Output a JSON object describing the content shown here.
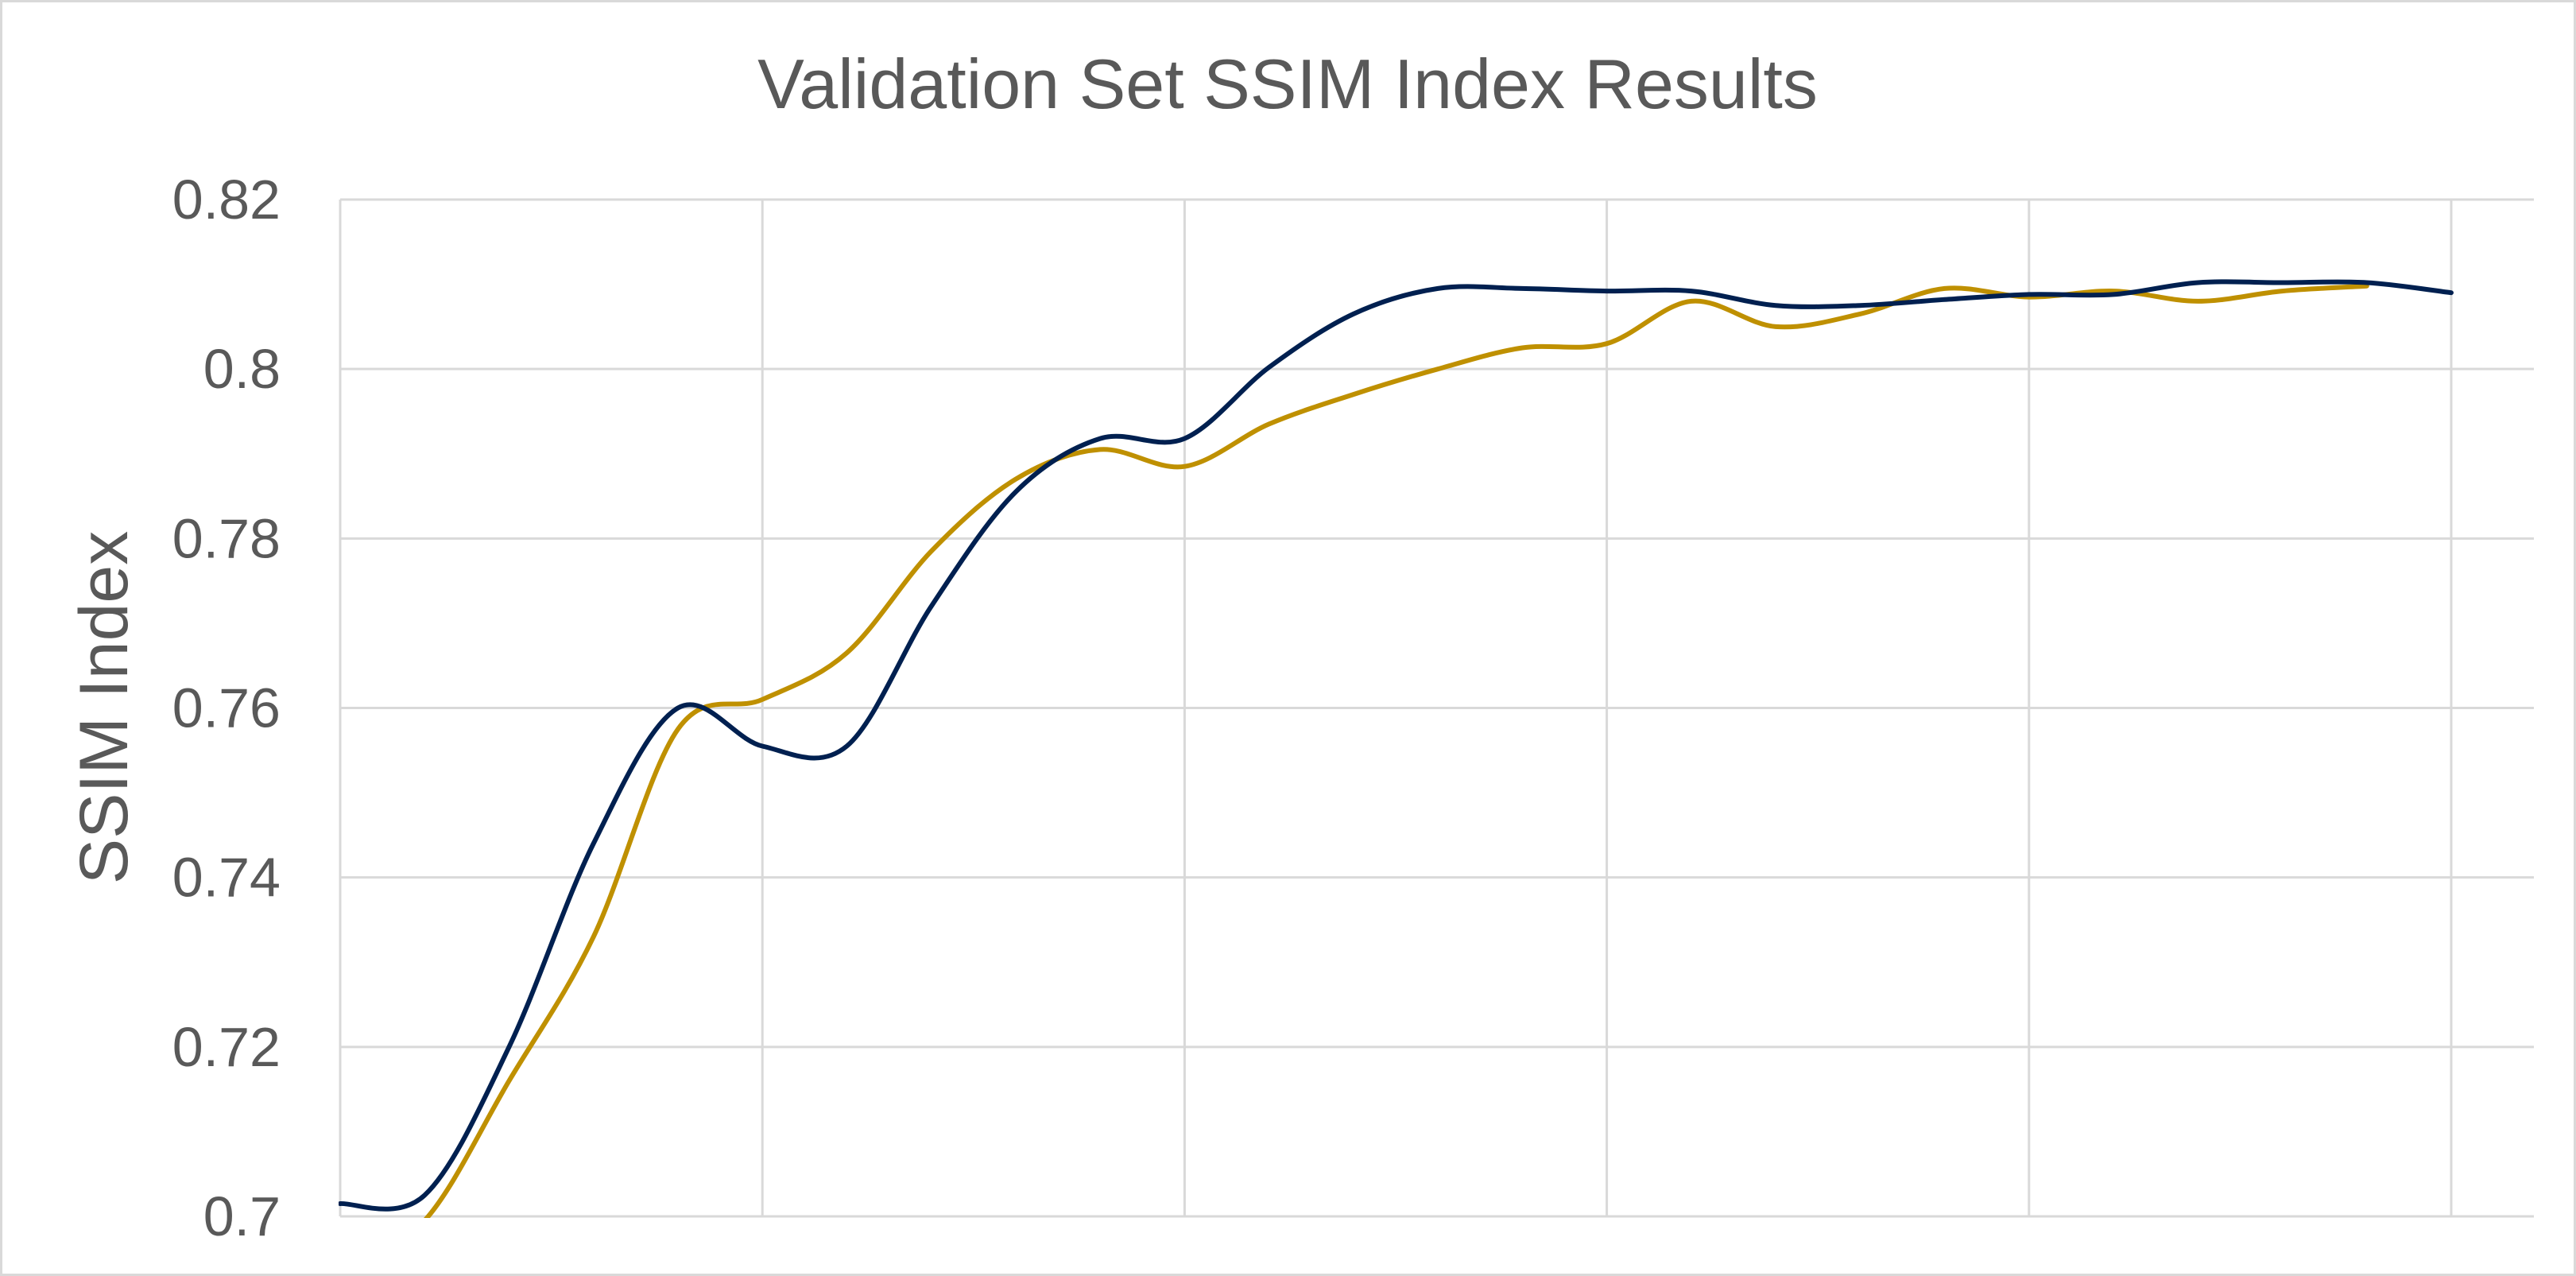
{
  "chart_data": {
    "type": "line",
    "title": "Validation Set SSIM Index Results",
    "xlabel": "",
    "ylabel": "SSIM Index",
    "ylim": [
      0.7,
      0.82
    ],
    "xlim": [
      1,
      26
    ],
    "y_ticks": [
      "0.82",
      "0.8",
      "0.78",
      "0.76",
      "0.74",
      "0.72",
      "0.7"
    ],
    "x_gridlines_at": [
      1,
      6,
      11,
      16,
      21,
      26
    ],
    "x_tick_labels_shown": false,
    "grid": true,
    "legend": "none",
    "series": [
      {
        "color": "#002050",
        "x": [
          1,
          2,
          3,
          4,
          5,
          6,
          7,
          8,
          9,
          10,
          11,
          12,
          13,
          14,
          15,
          16,
          17,
          18,
          19,
          20,
          21,
          22,
          23,
          24,
          25,
          26
        ],
        "values": [
          0.7015,
          0.7025,
          0.72,
          0.744,
          0.76,
          0.7555,
          0.7555,
          0.772,
          0.7855,
          0.7918,
          0.7918,
          0.8002,
          0.8065,
          0.8095,
          0.8095,
          0.8092,
          0.8092,
          0.8075,
          0.8075,
          0.8082,
          0.8088,
          0.8088,
          0.8102,
          0.8102,
          0.8102,
          0.809
        ]
      },
      {
        "color": "#BF9000",
        "x": [
          1,
          2,
          3,
          4,
          5,
          6,
          7,
          8,
          9,
          10,
          11,
          12,
          13,
          14,
          15,
          16,
          17,
          18,
          19,
          20,
          21,
          22,
          23,
          24,
          25
        ],
        "values": [
          0.694,
          0.6995,
          0.716,
          0.733,
          0.7575,
          0.761,
          0.7665,
          0.7785,
          0.787,
          0.7905,
          0.7885,
          0.7935,
          0.797,
          0.8,
          0.8025,
          0.803,
          0.808,
          0.805,
          0.8065,
          0.8095,
          0.8085,
          0.8092,
          0.808,
          0.8092,
          0.8098
        ]
      }
    ]
  }
}
